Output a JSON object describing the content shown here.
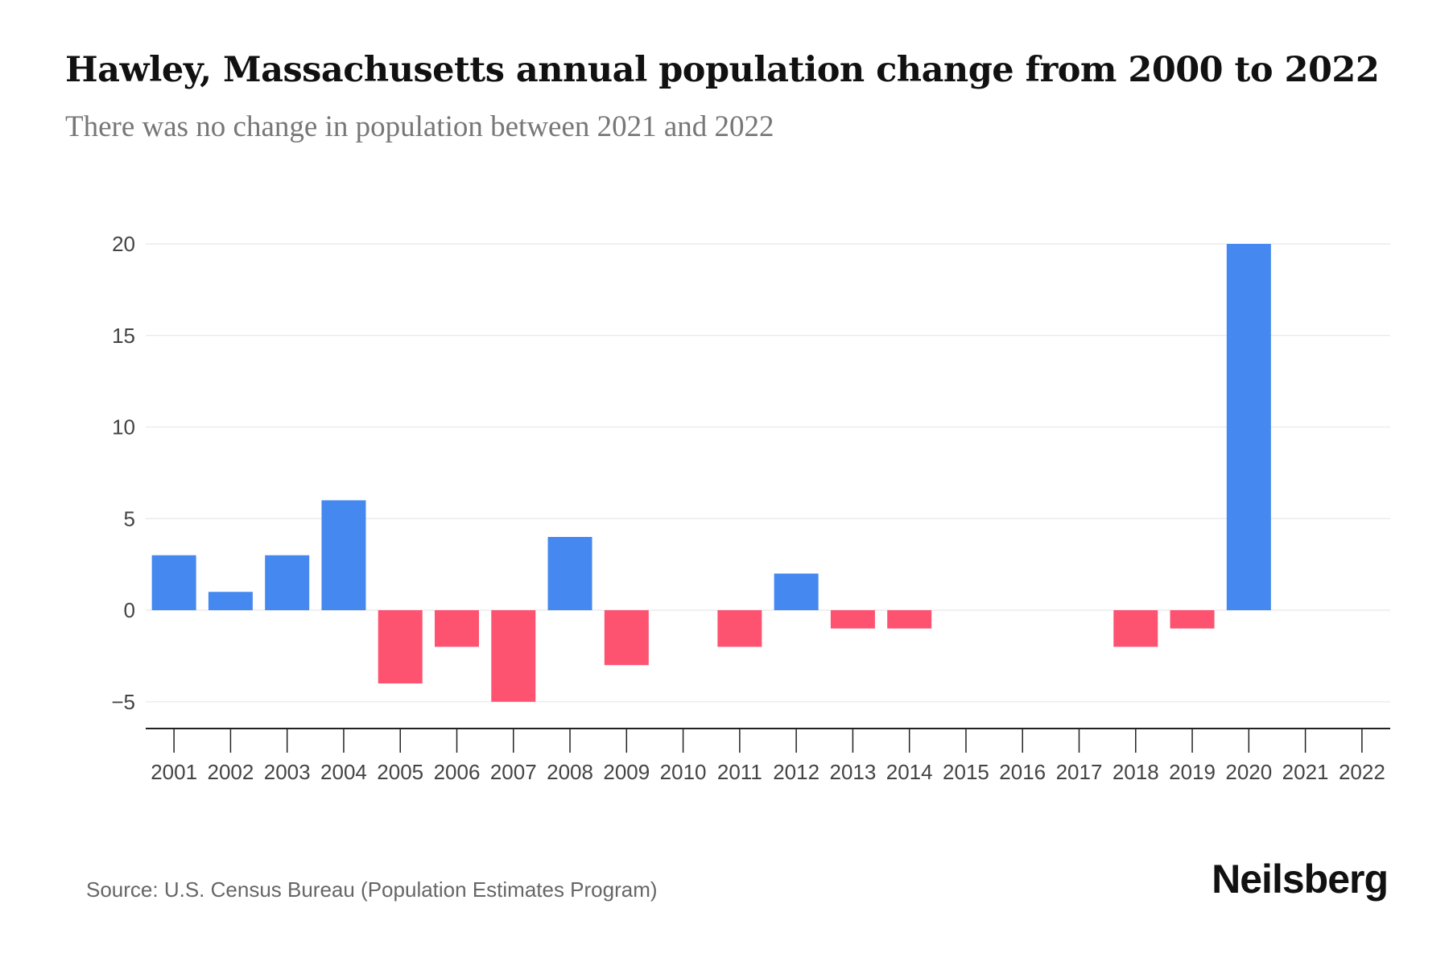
{
  "title": "Hawley, Massachusetts annual population change from 2000 to 2022",
  "subtitle": "There was no change in population between 2021 and 2022",
  "source": "Source: U.S. Census Bureau (Population Estimates Program)",
  "logo": "Neilsberg",
  "colors": {
    "positive": "#4488f0",
    "negative": "#fd5370",
    "grid": "#ececec",
    "axis": "#222222"
  },
  "chart_data": {
    "type": "bar",
    "title": "Hawley, Massachusetts annual population change from 2000 to 2022",
    "xlabel": "",
    "ylabel": "",
    "categories": [
      "2001",
      "2002",
      "2003",
      "2004",
      "2005",
      "2006",
      "2007",
      "2008",
      "2009",
      "2010",
      "2011",
      "2012",
      "2013",
      "2014",
      "2015",
      "2016",
      "2017",
      "2018",
      "2019",
      "2020",
      "2021",
      "2022"
    ],
    "values": [
      3,
      1,
      3,
      6,
      -4,
      -2,
      -5,
      4,
      -3,
      0,
      -2,
      2,
      -1,
      -1,
      0,
      0,
      0,
      -2,
      -1,
      20,
      0,
      0
    ],
    "yticks": [
      -5,
      0,
      5,
      10,
      15,
      20
    ],
    "ylim": [
      -6.4,
      20
    ],
    "grid": true
  }
}
